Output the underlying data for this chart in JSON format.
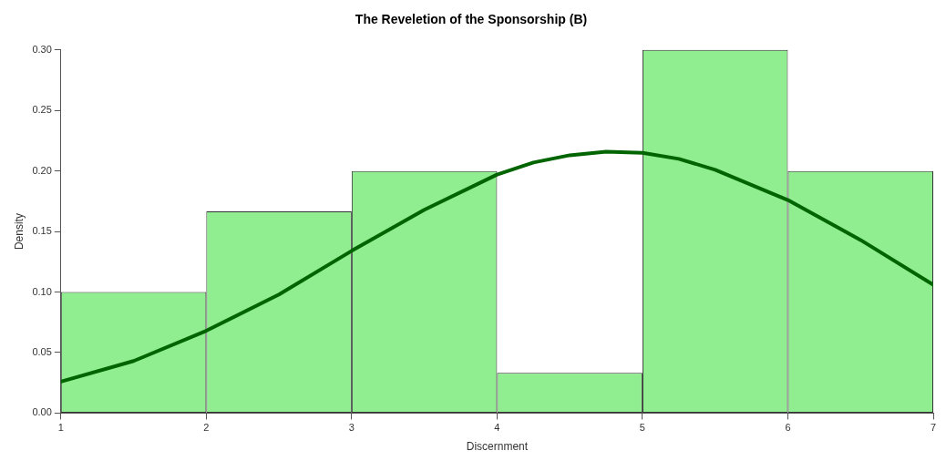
{
  "chart_data": {
    "type": "histogram",
    "title": "The Reveletion of the Sponsorship (B)",
    "xlabel": "Discernment",
    "ylabel": "Density",
    "bins": [
      1,
      2,
      3,
      4,
      5,
      6,
      7
    ],
    "values": [
      0.1,
      0.1667,
      0.2,
      0.0333,
      0.3,
      0.2
    ],
    "color": "#90ee90",
    "series": [
      {
        "type": "line",
        "color": "#006400",
        "x": [
          1,
          1.5,
          2,
          2.5,
          3,
          3.5,
          4,
          4.25,
          4.5,
          4.75,
          5,
          5.25,
          5.5,
          6,
          6.5,
          7
        ],
        "values": [
          0.026,
          0.043,
          0.068,
          0.098,
          0.134,
          0.168,
          0.197,
          0.207,
          0.213,
          0.216,
          0.215,
          0.21,
          0.201,
          0.176,
          0.143,
          0.106
        ]
      }
    ],
    "xlim": [
      1,
      7
    ],
    "ylim": [
      0,
      0.3
    ],
    "xticks": [
      1,
      2,
      3,
      4,
      5,
      6,
      7
    ],
    "yticks": [
      {
        "value": 0,
        "label": "0.00"
      },
      {
        "value": 0.05,
        "label": "0.05"
      },
      {
        "value": 0.1,
        "label": "0.10"
      },
      {
        "value": 0.15,
        "label": "0.15"
      },
      {
        "value": 0.2,
        "label": "0.20"
      },
      {
        "value": 0.25,
        "label": "0.25"
      },
      {
        "value": 0.3,
        "label": "0.30"
      }
    ],
    "grid": false,
    "legend": false
  }
}
